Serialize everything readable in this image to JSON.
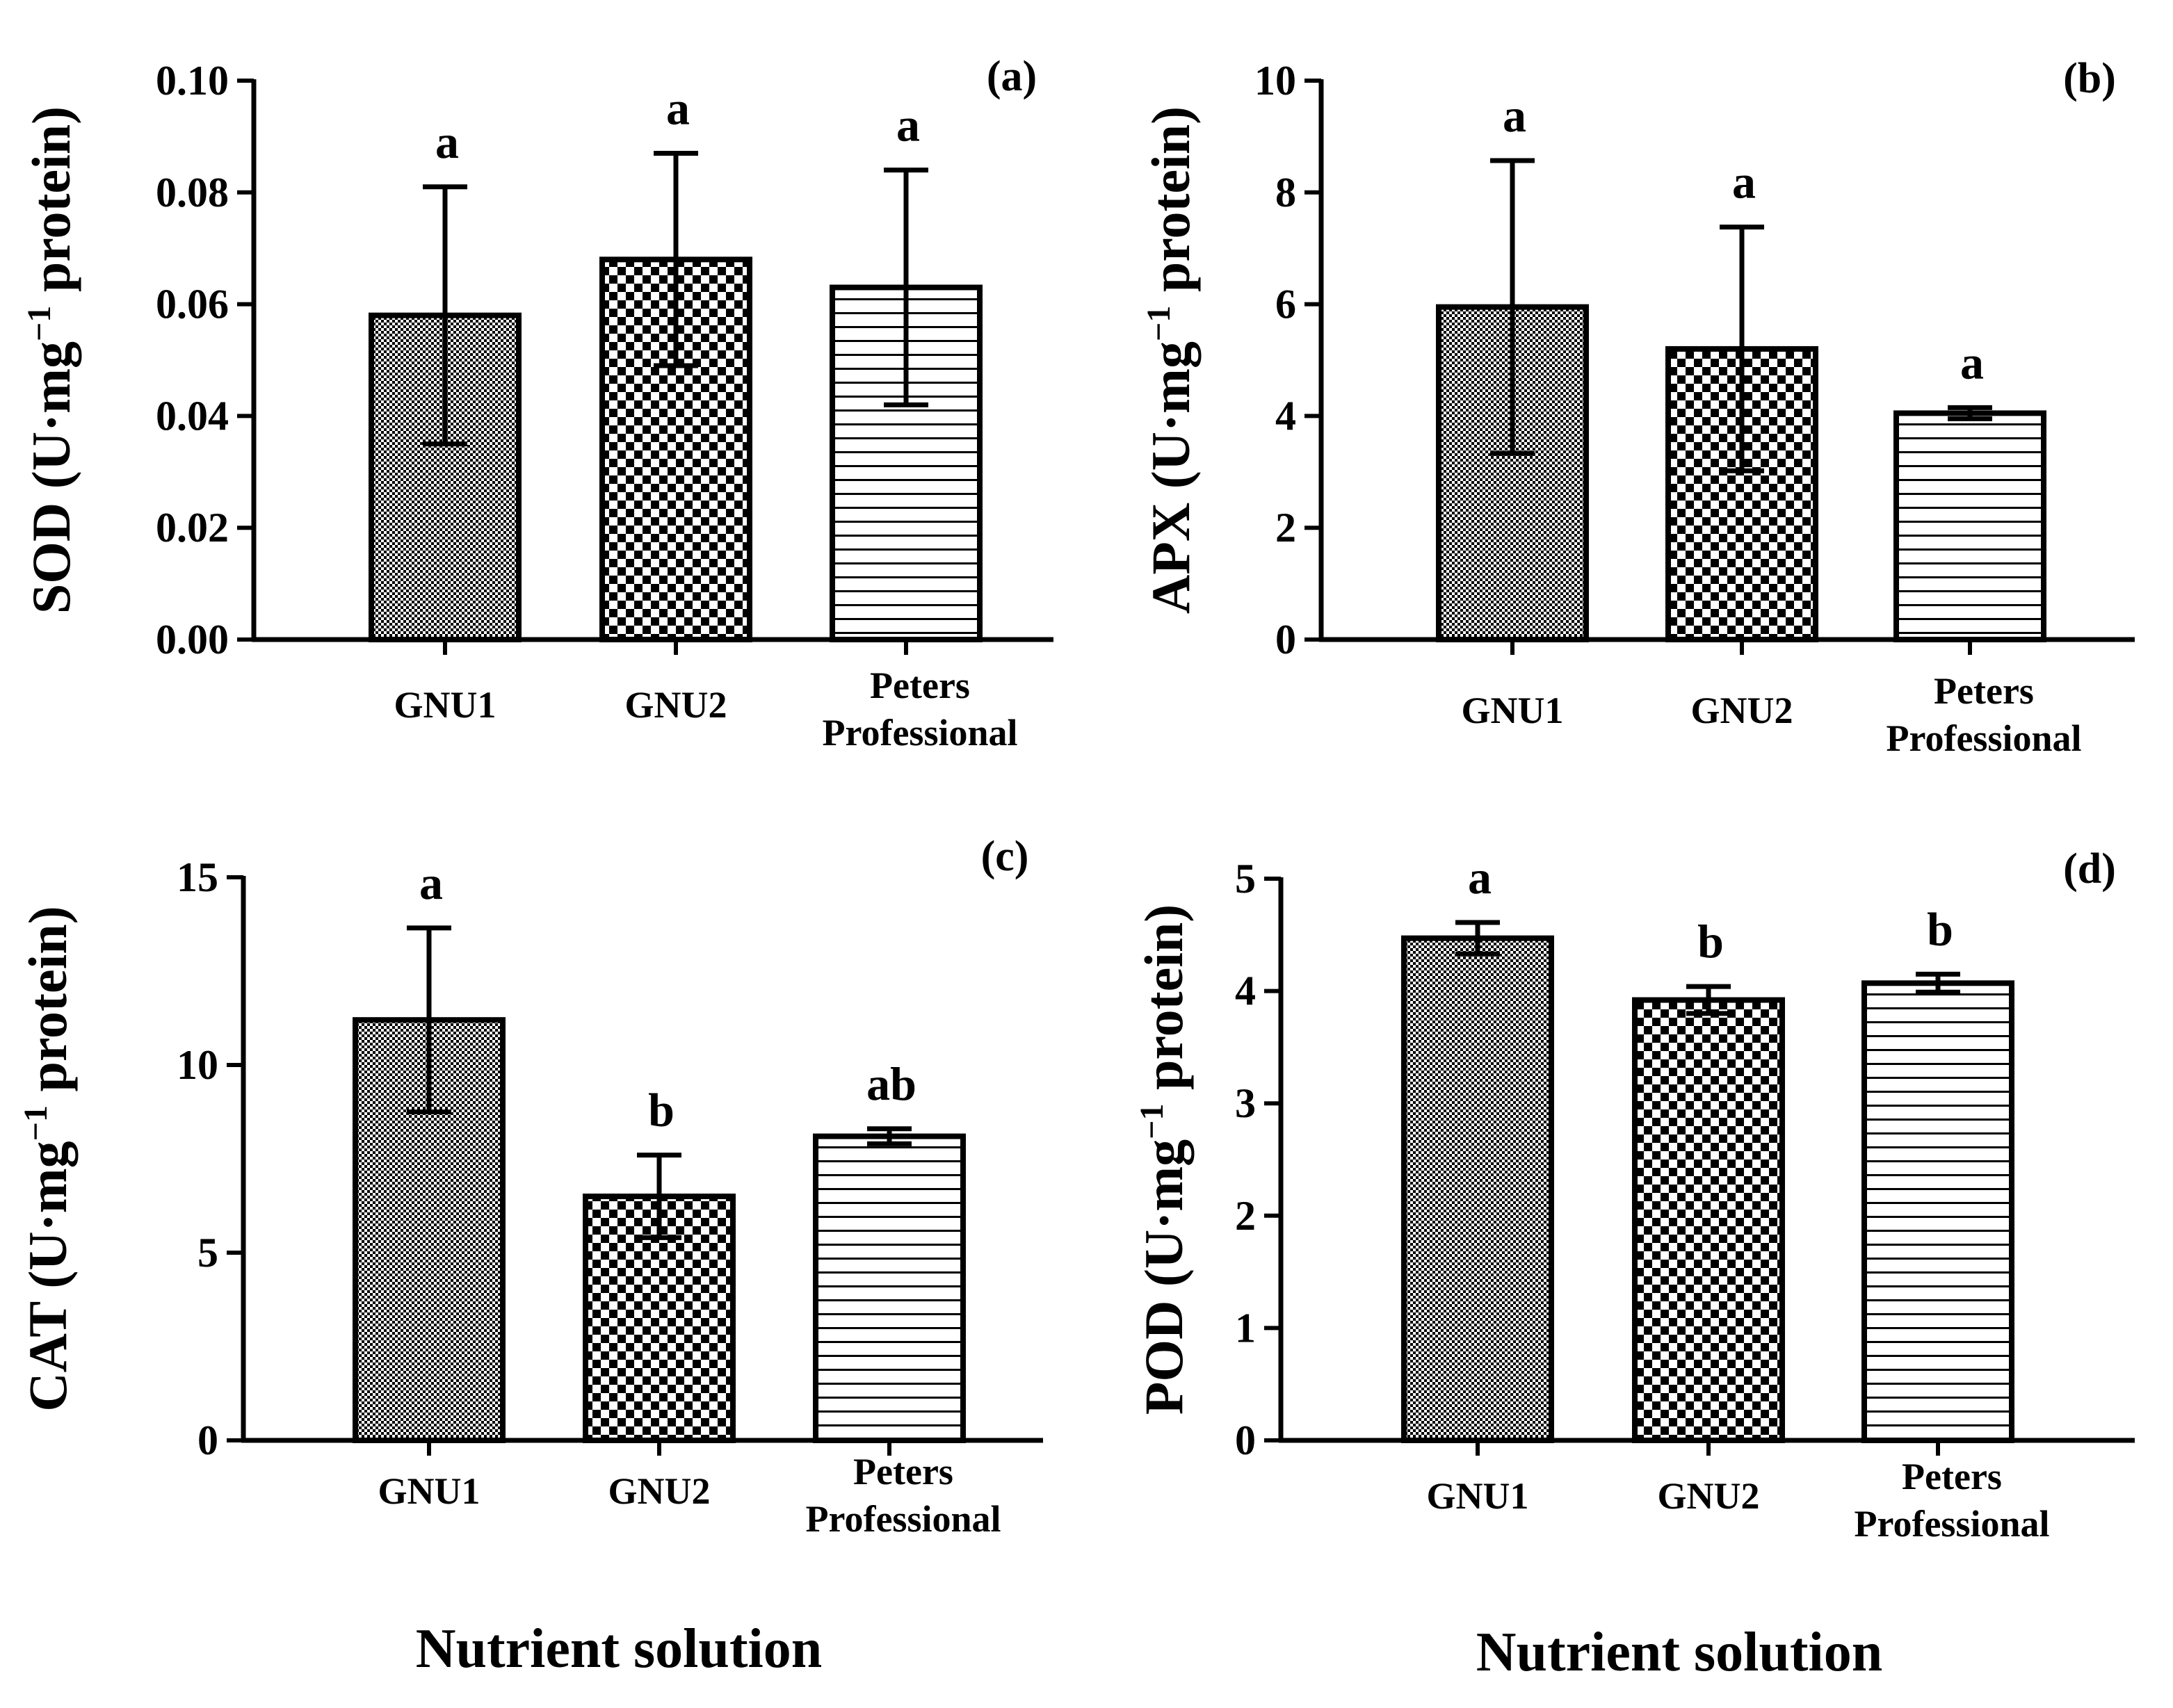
{
  "chart_data": [
    {
      "type": "bar",
      "panel": "(a)",
      "ylabel": {
        "prefix": "SOD (U·mg",
        "sup": "−1",
        "suffix": " protein)"
      },
      "ylim": [
        0,
        0.1
      ],
      "yticks": [
        "0.00",
        "0.02",
        "0.04",
        "0.06",
        "0.08",
        "0.10"
      ],
      "categories": [
        [
          "GNU1"
        ],
        [
          "GNU2"
        ],
        [
          "Peters",
          "Professional"
        ]
      ],
      "values": [
        0.058,
        0.068,
        0.063
      ],
      "errors": [
        0.023,
        0.019,
        0.021
      ],
      "letters": [
        "a",
        "a",
        "a"
      ],
      "xlabel": ""
    },
    {
      "type": "bar",
      "panel": "(b)",
      "ylabel": {
        "prefix": "APX (U·mg",
        "sup": "−1",
        "suffix": " protein)"
      },
      "ylim": [
        0,
        10
      ],
      "yticks": [
        "0",
        "2",
        "4",
        "6",
        "8",
        "10"
      ],
      "categories": [
        [
          "GNU1"
        ],
        [
          "GNU2"
        ],
        [
          "Peters",
          "Professional"
        ]
      ],
      "values": [
        5.95,
        5.2,
        4.05
      ],
      "errors": [
        2.62,
        2.18,
        0.1
      ],
      "letters": [
        "a",
        "a",
        "a"
      ],
      "xlabel": ""
    },
    {
      "type": "bar",
      "panel": "(c)",
      "ylabel": {
        "prefix": "CAT (U·mg",
        "sup": "−1",
        "suffix": " protein)"
      },
      "ylim": [
        0,
        15
      ],
      "yticks": [
        "0",
        "5",
        "10",
        "15"
      ],
      "categories": [
        [
          "GNU1"
        ],
        [
          "GNU2"
        ],
        [
          "Peters",
          "Professional"
        ]
      ],
      "values": [
        11.2,
        6.5,
        8.1
      ],
      "errors": [
        2.45,
        1.1,
        0.2
      ],
      "letters": [
        "a",
        "b",
        "ab"
      ],
      "xlabel": "Nutrient solution"
    },
    {
      "type": "bar",
      "panel": "(d)",
      "ylabel": {
        "prefix": "POD (U·mg",
        "sup": "−1",
        "suffix": " protein)"
      },
      "ylim": [
        0,
        5
      ],
      "yticks": [
        "0",
        "1",
        "2",
        "3",
        "4",
        "5"
      ],
      "categories": [
        [
          "GNU1"
        ],
        [
          "GNU2"
        ],
        [
          "Peters",
          "Professional"
        ]
      ],
      "values": [
        4.47,
        3.92,
        4.07
      ],
      "errors": [
        0.14,
        0.12,
        0.08
      ],
      "letters": [
        "a",
        "b",
        "b"
      ],
      "xlabel": "Nutrient solution"
    }
  ]
}
